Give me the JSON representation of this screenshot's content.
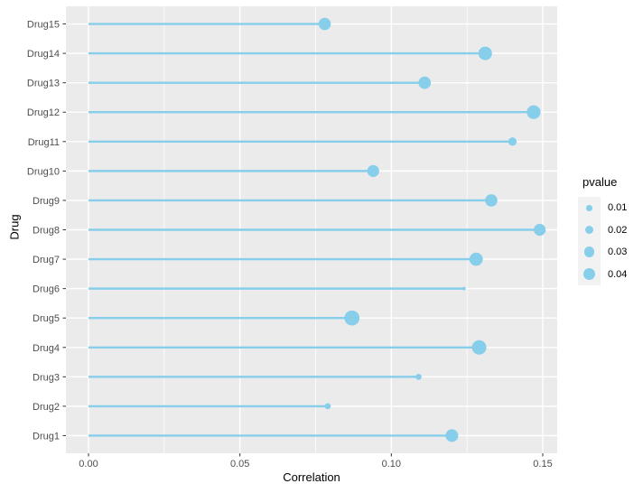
{
  "colors": {
    "accent": "#87CEEB",
    "panel_background": "#EBEBEB",
    "grid": "#FFFFFF",
    "legend_key_background": "#F2F2F2",
    "tick_label": "#4D4D4D",
    "tick_mark": "#333333",
    "axis_title": "#000000",
    "page_background": "#FFFFFF"
  },
  "chart_data": {
    "type": "lollipop",
    "orientation": "horizontal",
    "title": "",
    "xlabel": "Correlation",
    "ylabel": "Drug",
    "categories": [
      "Drug1",
      "Drug2",
      "Drug3",
      "Drug4",
      "Drug5",
      "Drug6",
      "Drug7",
      "Drug8",
      "Drug9",
      "Drug10",
      "Drug11",
      "Drug12",
      "Drug13",
      "Drug14",
      "Drug15"
    ],
    "points": [
      {
        "drug": "Drug1",
        "correlation": 0.12,
        "pvalue": 0.044
      },
      {
        "drug": "Drug2",
        "correlation": 0.079,
        "pvalue": 0.01
      },
      {
        "drug": "Drug3",
        "correlation": 0.109,
        "pvalue": 0.01
      },
      {
        "drug": "Drug4",
        "correlation": 0.129,
        "pvalue": 0.057
      },
      {
        "drug": "Drug5",
        "correlation": 0.087,
        "pvalue": 0.062
      },
      {
        "drug": "Drug6",
        "correlation": 0.124,
        "pvalue": 0.003
      },
      {
        "drug": "Drug7",
        "correlation": 0.128,
        "pvalue": 0.048
      },
      {
        "drug": "Drug8",
        "correlation": 0.149,
        "pvalue": 0.039
      },
      {
        "drug": "Drug9",
        "correlation": 0.133,
        "pvalue": 0.042
      },
      {
        "drug": "Drug10",
        "correlation": 0.094,
        "pvalue": 0.039
      },
      {
        "drug": "Drug11",
        "correlation": 0.14,
        "pvalue": 0.019
      },
      {
        "drug": "Drug12",
        "correlation": 0.147,
        "pvalue": 0.052
      },
      {
        "drug": "Drug13",
        "correlation": 0.111,
        "pvalue": 0.042
      },
      {
        "drug": "Drug14",
        "correlation": 0.131,
        "pvalue": 0.05
      },
      {
        "drug": "Drug15",
        "correlation": 0.078,
        "pvalue": 0.041
      }
    ],
    "x_axis": {
      "ticks": [
        {
          "value": 0.0,
          "label": "0.00"
        },
        {
          "value": 0.05,
          "label": "0.05"
        },
        {
          "value": 0.1,
          "label": "0.10"
        },
        {
          "value": 0.15,
          "label": "0.15"
        }
      ],
      "minor_ticks": [
        0.025,
        0.075,
        0.125
      ],
      "range": [
        0,
        0.155
      ]
    },
    "legend": {
      "title": "pvalue",
      "position": "right",
      "entries": [
        {
          "label": "0.01",
          "value": 0.01
        },
        {
          "label": "0.02",
          "value": 0.02
        },
        {
          "label": "0.03",
          "value": 0.03
        },
        {
          "label": "0.04",
          "value": 0.04
        }
      ]
    },
    "grid": true,
    "legend_position": "right"
  }
}
